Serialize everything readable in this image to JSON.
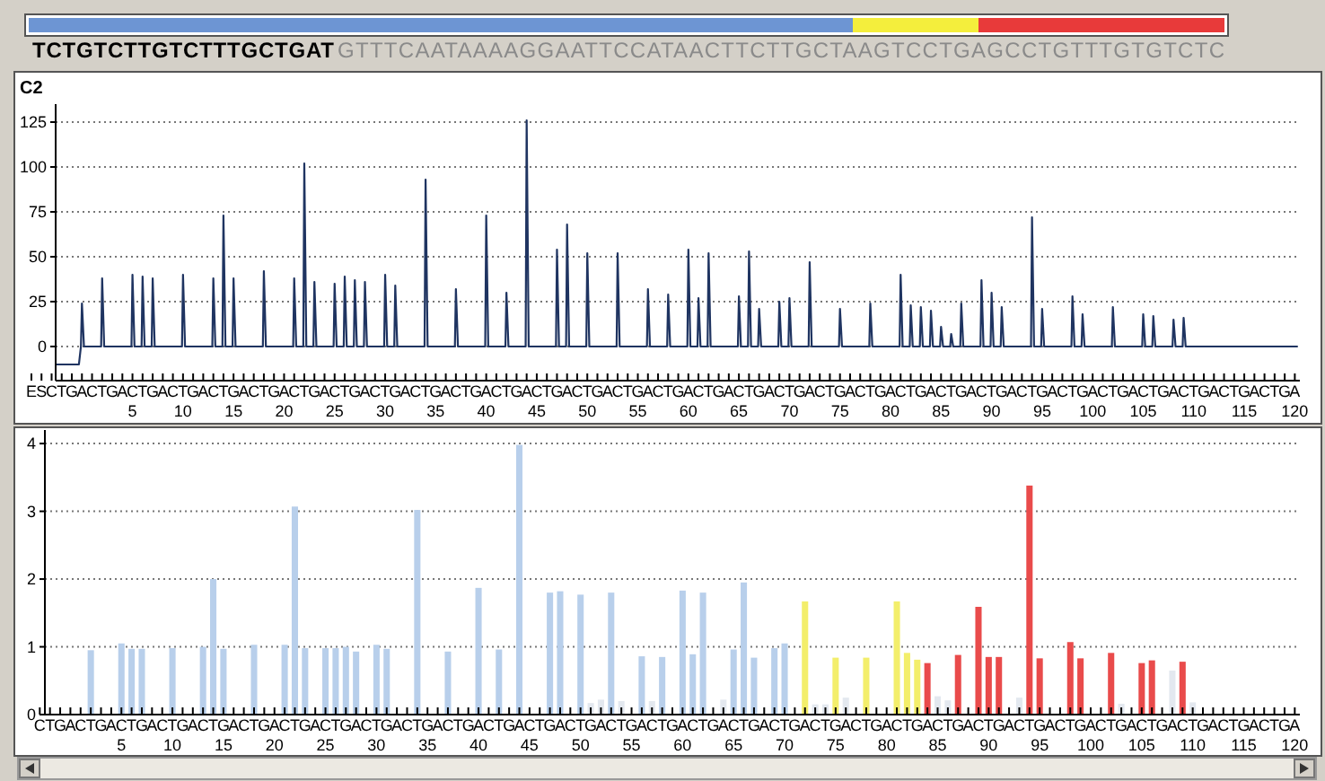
{
  "chart_data": [
    {
      "type": "line",
      "title": "C2",
      "annotations": [
        "TCTGTCTTGTCTTTGCTGAT",
        "GTTTCAATAAAAGGAATTCCATAACTTCTTGCTAAGTCCTGAGCCTGTTTGTGTCTC",
        "ESCTGACTGACTGACTGACTGACTGACTGACTGACTGACTGACTGACTGACTGACTGACTGACTGACTGACTGACTGACTGACTGACTGACTGACTGACTGACTGACTGACTGACTGACTGACTGA"
      ],
      "series": [
        {
          "color": "#1f3461",
          "x": [
            -2.6,
            -0.3,
            -0.1,
            0,
            0.2,
            1.9,
            2,
            2.2,
            4.9,
            5,
            5.2,
            5.9,
            6,
            6.2,
            6.9,
            7,
            7.2,
            9.9,
            10,
            10.2,
            12.9,
            13,
            13.2,
            13.9,
            14,
            14.2,
            14.9,
            15,
            15.2,
            17.9,
            18,
            18.2,
            20.9,
            21,
            21.2,
            21.9,
            22,
            22.2,
            22.9,
            23,
            23.2,
            24.9,
            25,
            25.2,
            25.9,
            26,
            26.2,
            26.9,
            27,
            27.2,
            27.9,
            28,
            28.2,
            29.9,
            30,
            30.2,
            30.9,
            31,
            31.2,
            33.9,
            34,
            34.2,
            36.9,
            37,
            37.2,
            39.9,
            40,
            40.2,
            41.9,
            42,
            42.2,
            43.9,
            44,
            44.2,
            46.9,
            47,
            47.2,
            47.9,
            48,
            48.2,
            49.9,
            50,
            50.2,
            52.9,
            53,
            53.2,
            55.9,
            56,
            56.2,
            57.9,
            58,
            58.2,
            59.9,
            60,
            60.2,
            60.9,
            61,
            61.2,
            61.9,
            62,
            62.2,
            64.9,
            65,
            65.2,
            65.9,
            66,
            66.2,
            66.9,
            67,
            67.2,
            68.9,
            69,
            69.2,
            69.9,
            70,
            70.2,
            71.9,
            72,
            72.2,
            74.9,
            75,
            75.2,
            77.9,
            78,
            78.2,
            80.9,
            81,
            81.2,
            81.9,
            82,
            82.2,
            82.9,
            83,
            83.2,
            83.9,
            84,
            84.2,
            84.9,
            85,
            85.2,
            85.9,
            86,
            86.2,
            86.9,
            87,
            87.2,
            88.9,
            89,
            89.2,
            89.9,
            90,
            90.2,
            90.9,
            91,
            91.2,
            93.9,
            94,
            94.2,
            94.9,
            95,
            95.2,
            97.9,
            98,
            98.2,
            98.9,
            99,
            99.2,
            101.9,
            102,
            102.2,
            104.9,
            105,
            105.2,
            105.9,
            106,
            106.2,
            107.9,
            108,
            108.2,
            108.9,
            109,
            109.2,
            120.3
          ],
          "values": [
            -10,
            -10,
            0,
            24,
            0,
            0,
            38,
            0,
            0,
            40,
            0,
            0,
            39,
            0,
            0,
            38,
            0,
            0,
            40,
            0,
            0,
            38,
            0,
            0,
            73,
            0,
            0,
            38,
            0,
            0,
            42,
            0,
            0,
            38,
            0,
            0,
            102,
            0,
            0,
            36,
            0,
            0,
            35,
            0,
            0,
            39,
            0,
            0,
            37,
            0,
            0,
            36,
            0,
            0,
            40,
            0,
            0,
            34,
            0,
            0,
            93,
            0,
            0,
            32,
            0,
            0,
            73,
            0,
            0,
            30,
            0,
            0,
            126,
            0,
            0,
            54,
            0,
            0,
            68,
            0,
            0,
            52,
            0,
            0,
            52,
            0,
            0,
            32,
            0,
            0,
            29,
            0,
            0,
            54,
            0,
            0,
            27,
            0,
            0,
            52,
            0,
            0,
            28,
            0,
            0,
            53,
            0,
            0,
            21,
            0,
            0,
            25,
            0,
            0,
            27,
            0,
            0,
            47,
            0,
            0,
            21,
            0,
            0,
            24,
            0,
            0,
            40,
            0,
            0,
            23,
            0,
            0,
            22,
            0,
            0,
            20,
            0,
            0,
            11,
            0,
            0,
            7,
            0,
            0,
            24,
            0,
            0,
            37,
            0,
            0,
            30,
            0,
            0,
            22,
            0,
            0,
            72,
            0,
            0,
            21,
            0,
            0,
            28,
            0,
            0,
            18,
            0,
            0,
            22,
            0,
            0,
            18,
            0,
            0,
            17,
            0,
            0,
            15,
            0,
            0,
            16,
            0,
            0
          ]
        }
      ],
      "xlim": [
        -2.6,
        120.5
      ],
      "ylim": [
        -19,
        135
      ],
      "yticks": [
        0,
        25,
        50,
        75,
        100,
        125
      ],
      "xticks": [
        5,
        10,
        15,
        20,
        25,
        30,
        35,
        40,
        45,
        50,
        55,
        60,
        65,
        70,
        75,
        80,
        85,
        90,
        95,
        100,
        105,
        110,
        115,
        120
      ],
      "grid": "y"
    },
    {
      "type": "bar",
      "x": [
        1,
        2,
        3,
        4,
        5,
        6,
        7,
        8,
        9,
        10,
        11,
        12,
        13,
        14,
        15,
        16,
        17,
        18,
        19,
        20,
        21,
        22,
        23,
        24,
        25,
        26,
        27,
        28,
        29,
        30,
        31,
        32,
        33,
        34,
        35,
        36,
        37,
        38,
        39,
        40,
        41,
        42,
        43,
        44,
        45,
        46,
        47,
        48,
        49,
        50,
        51,
        52,
        53,
        54,
        55,
        56,
        57,
        58,
        59,
        60,
        61,
        62,
        63,
        64,
        65,
        66,
        67,
        68,
        69,
        70,
        71,
        72,
        73,
        74,
        75,
        76,
        77,
        78,
        79,
        80,
        81,
        82,
        83,
        84,
        85,
        86,
        87,
        88,
        89,
        90,
        91,
        92,
        93,
        94,
        95,
        96,
        97,
        98,
        99,
        100,
        101,
        102,
        103,
        104,
        105,
        106,
        107,
        108,
        109,
        110,
        111,
        112,
        113,
        114,
        115,
        116,
        117,
        118,
        119,
        120
      ],
      "values": [
        0,
        0.95,
        0,
        0,
        1.05,
        0.97,
        0.97,
        0,
        0,
        0.98,
        0,
        0,
        1.0,
        2.0,
        0.97,
        0,
        0,
        1.03,
        0,
        0,
        1.03,
        3.07,
        0.98,
        0,
        0.98,
        0.98,
        1.0,
        0.93,
        0,
        1.03,
        0.97,
        0,
        0,
        3.02,
        0,
        0,
        0.93,
        0,
        0,
        1.87,
        0,
        0.96,
        0,
        3.98,
        0,
        0,
        1.8,
        1.82,
        0,
        1.77,
        0.17,
        0.22,
        1.8,
        0.2,
        0,
        0.86,
        0.2,
        0.85,
        0,
        1.83,
        0.89,
        1.8,
        0,
        0.22,
        0.96,
        1.95,
        0.84,
        0,
        0.98,
        1.05,
        0,
        1.67,
        0.15,
        0.15,
        0.84,
        0.25,
        0,
        0.84,
        0,
        0,
        1.67,
        0.91,
        0.81,
        0.76,
        0.27,
        0.21,
        0.88,
        0,
        1.59,
        0.85,
        0.85,
        0,
        0.25,
        3.38,
        0.83,
        0,
        0,
        1.07,
        0.83,
        0,
        0,
        0.91,
        0.16,
        0,
        0.76,
        0.8,
        0,
        0.65,
        0.78,
        0.18,
        0,
        0,
        0,
        0,
        0,
        0,
        0,
        0,
        0,
        0
      ],
      "colors": [
        "#e3e8ef",
        "#b8cfeb",
        "#e3e8ef",
        "#e3e8ef",
        "#b8cfeb",
        "#b8cfeb",
        "#b8cfeb",
        "#e3e8ef",
        "#e3e8ef",
        "#b8cfeb",
        "#e3e8ef",
        "#e3e8ef",
        "#b8cfeb",
        "#b8cfeb",
        "#b8cfeb",
        "#e3e8ef",
        "#e3e8ef",
        "#b8cfeb",
        "#e3e8ef",
        "#e3e8ef",
        "#b8cfeb",
        "#b8cfeb",
        "#b8cfeb",
        "#e3e8ef",
        "#b8cfeb",
        "#b8cfeb",
        "#b8cfeb",
        "#b8cfeb",
        "#e3e8ef",
        "#b8cfeb",
        "#b8cfeb",
        "#e3e8ef",
        "#e3e8ef",
        "#b8cfeb",
        "#e3e8ef",
        "#e3e8ef",
        "#b8cfeb",
        "#e3e8ef",
        "#e3e8ef",
        "#b8cfeb",
        "#e3e8ef",
        "#b8cfeb",
        "#e3e8ef",
        "#b8cfeb",
        "#e3e8ef",
        "#e3e8ef",
        "#b8cfeb",
        "#b8cfeb",
        "#e3e8ef",
        "#b8cfeb",
        "#e3e8ef",
        "#e3e8ef",
        "#b8cfeb",
        "#e3e8ef",
        "#e3e8ef",
        "#b8cfeb",
        "#e3e8ef",
        "#b8cfeb",
        "#e3e8ef",
        "#b8cfeb",
        "#b8cfeb",
        "#b8cfeb",
        "#e3e8ef",
        "#e3e8ef",
        "#b8cfeb",
        "#b8cfeb",
        "#b8cfeb",
        "#e3e8ef",
        "#b8cfeb",
        "#b8cfeb",
        "#e3e8ef",
        "#f3ee6b",
        "#e3e8ef",
        "#e3e8ef",
        "#f3ee6b",
        "#e3e8ef",
        "#e3e8ef",
        "#f3ee6b",
        "#e3e8ef",
        "#e3e8ef",
        "#f3ee6b",
        "#f3ee6b",
        "#f3ee6b",
        "#e94b4b",
        "#e3e8ef",
        "#e3e8ef",
        "#e94b4b",
        "#e3e8ef",
        "#e94b4b",
        "#e94b4b",
        "#e94b4b",
        "#e3e8ef",
        "#e3e8ef",
        "#e94b4b",
        "#e94b4b",
        "#e3e8ef",
        "#e3e8ef",
        "#e94b4b",
        "#e94b4b",
        "#e3e8ef",
        "#e3e8ef",
        "#e94b4b",
        "#e3e8ef",
        "#e3e8ef",
        "#e94b4b",
        "#e94b4b",
        "#e3e8ef",
        "#e3e8ef",
        "#e94b4b",
        "#e3e8ef",
        "#e3e8ef",
        "#e3e8ef",
        "#e3e8ef",
        "#e3e8ef",
        "#e3e8ef",
        "#e3e8ef",
        "#e3e8ef",
        "#e3e8ef",
        "#e3e8ef",
        "#e3e8ef"
      ],
      "xlim": [
        -2.5,
        120.5
      ],
      "ylim": [
        0,
        4.2
      ],
      "yticks": [
        0,
        1,
        2,
        3,
        4
      ],
      "grid": "y",
      "xticks": [
        5,
        10,
        15,
        20,
        25,
        30,
        35,
        40,
        45,
        50,
        55,
        60,
        65,
        70,
        75,
        80,
        85,
        90,
        95,
        100,
        105,
        110,
        115,
        120
      ],
      "annotations": [
        "CTGACTGACTGACTGACTGACTGACTGACTGACTGACTGACTGACTGACTGACTGACTGACTGACTGACTGACTGACTGACTGACTGACTGACTGACTGACTGACTGACTGACTGACTGACTGA"
      ]
    }
  ]
}
